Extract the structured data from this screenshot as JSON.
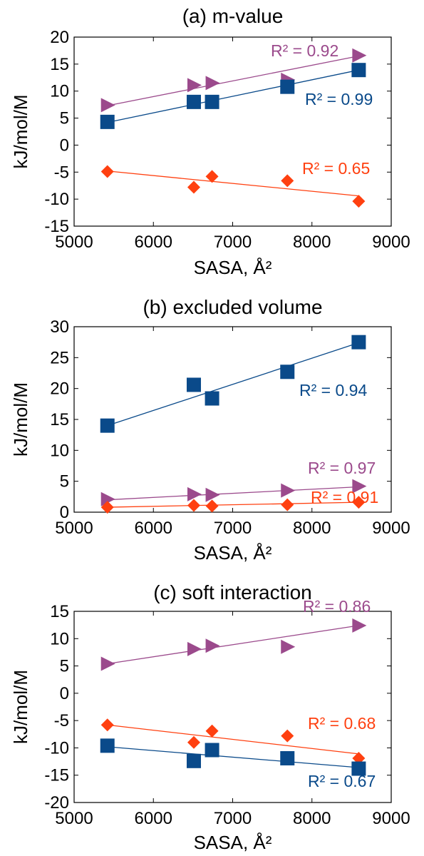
{
  "chart_data": [
    {
      "type": "scatter",
      "title": "(a) m-value",
      "xlabel": "SASA, Å²",
      "ylabel": "kJ/mol/M",
      "xlim": [
        5000,
        9000
      ],
      "ylim": [
        -15,
        20
      ],
      "xticks": [
        "5000",
        "6000",
        "7000",
        "8000",
        "9000"
      ],
      "yticks": [
        "-15",
        "-10",
        "-5",
        "0",
        "5",
        "10",
        "15",
        "20"
      ],
      "grid": false,
      "series": [
        {
          "marker": "triangle-right",
          "color": "#9b4a8c",
          "x": [
            5420,
            6510,
            6740,
            7690,
            8590
          ],
          "y": [
            7.4,
            11.1,
            11.5,
            12.1,
            16.6
          ],
          "fit": [
            [
              5420,
              7.3
            ],
            [
              8590,
              16.5
            ]
          ],
          "r2_label": "R² = 0.92"
        },
        {
          "marker": "square",
          "color": "#0a4a8a",
          "x": [
            5420,
            6510,
            6740,
            7690,
            8590
          ],
          "y": [
            4.3,
            8.0,
            8.0,
            10.8,
            13.9
          ],
          "fit": [
            [
              5420,
              4.2
            ],
            [
              8590,
              13.9
            ]
          ],
          "r2_label": "R² = 0.99"
        },
        {
          "marker": "diamond",
          "color": "#ff4010",
          "x": [
            5420,
            6510,
            6740,
            7690,
            8590
          ],
          "y": [
            -4.9,
            -7.8,
            -5.8,
            -6.6,
            -10.4
          ],
          "fit": [
            [
              5420,
              -4.8
            ],
            [
              8590,
              -9.4
            ]
          ],
          "r2_label": "R² = 0.65"
        }
      ]
    },
    {
      "type": "scatter",
      "title": "(b) excluded volume",
      "xlabel": "SASA, Å²",
      "ylabel": "kJ/mol/M",
      "xlim": [
        5000,
        9000
      ],
      "ylim": [
        0,
        30
      ],
      "xticks": [
        "5000",
        "6000",
        "7000",
        "8000",
        "9000"
      ],
      "yticks": [
        "0",
        "5",
        "10",
        "15",
        "20",
        "25",
        "30"
      ],
      "grid": false,
      "series": [
        {
          "marker": "square",
          "color": "#0a4a8a",
          "x": [
            5420,
            6510,
            6740,
            7690,
            8590
          ],
          "y": [
            14.0,
            20.6,
            18.4,
            22.7,
            27.5
          ],
          "fit": [
            [
              5420,
              14.0
            ],
            [
              8590,
              27.4
            ]
          ],
          "r2_label": "R² = 0.94"
        },
        {
          "marker": "triangle-right",
          "color": "#9b4a8c",
          "x": [
            5420,
            6510,
            6740,
            7690,
            8590
          ],
          "y": [
            2.1,
            2.9,
            2.8,
            3.5,
            4.2
          ],
          "fit": [
            [
              5420,
              2.0
            ],
            [
              8590,
              4.1
            ]
          ],
          "r2_label": "R² = 0.97"
        },
        {
          "marker": "diamond",
          "color": "#ff4010",
          "x": [
            5420,
            6510,
            6740,
            7690,
            8590
          ],
          "y": [
            0.8,
            1.1,
            1.0,
            1.2,
            1.6
          ],
          "fit": [
            [
              5420,
              0.8
            ],
            [
              8590,
              1.6
            ]
          ],
          "r2_label": "R² = 0.91"
        }
      ]
    },
    {
      "type": "scatter",
      "title": "(c) soft interaction",
      "xlabel": "SASA, Å²",
      "ylabel": "kJ/mol/M",
      "xlim": [
        5000,
        9000
      ],
      "ylim": [
        -20,
        15
      ],
      "xticks": [
        "5000",
        "6000",
        "7000",
        "8000",
        "9000"
      ],
      "yticks": [
        "-20",
        "-15",
        "-10",
        "-5",
        "0",
        "5",
        "10",
        "15"
      ],
      "grid": false,
      "series": [
        {
          "marker": "triangle-right",
          "color": "#9b4a8c",
          "x": [
            5420,
            6510,
            6740,
            7690,
            8590
          ],
          "y": [
            5.4,
            8.1,
            8.7,
            8.5,
            12.4
          ],
          "fit": [
            [
              5420,
              5.4
            ],
            [
              8590,
              12.4
            ]
          ],
          "r2_label": "R² = 0.86"
        },
        {
          "marker": "diamond",
          "color": "#ff4010",
          "x": [
            5420,
            6510,
            6740,
            7690,
            8590
          ],
          "y": [
            -5.8,
            -9.0,
            -6.9,
            -7.8,
            -11.9
          ],
          "fit": [
            [
              5420,
              -5.8
            ],
            [
              8590,
              -11.1
            ]
          ],
          "r2_label": "R² = 0.68"
        },
        {
          "marker": "square",
          "color": "#0a4a8a",
          "x": [
            5420,
            6510,
            6740,
            7690,
            8590
          ],
          "y": [
            -9.6,
            -12.4,
            -10.4,
            -11.9,
            -13.8
          ],
          "fit": [
            [
              5420,
              -9.8
            ],
            [
              8590,
              -13.6
            ]
          ],
          "r2_label": "R² = 0.67"
        }
      ]
    }
  ]
}
